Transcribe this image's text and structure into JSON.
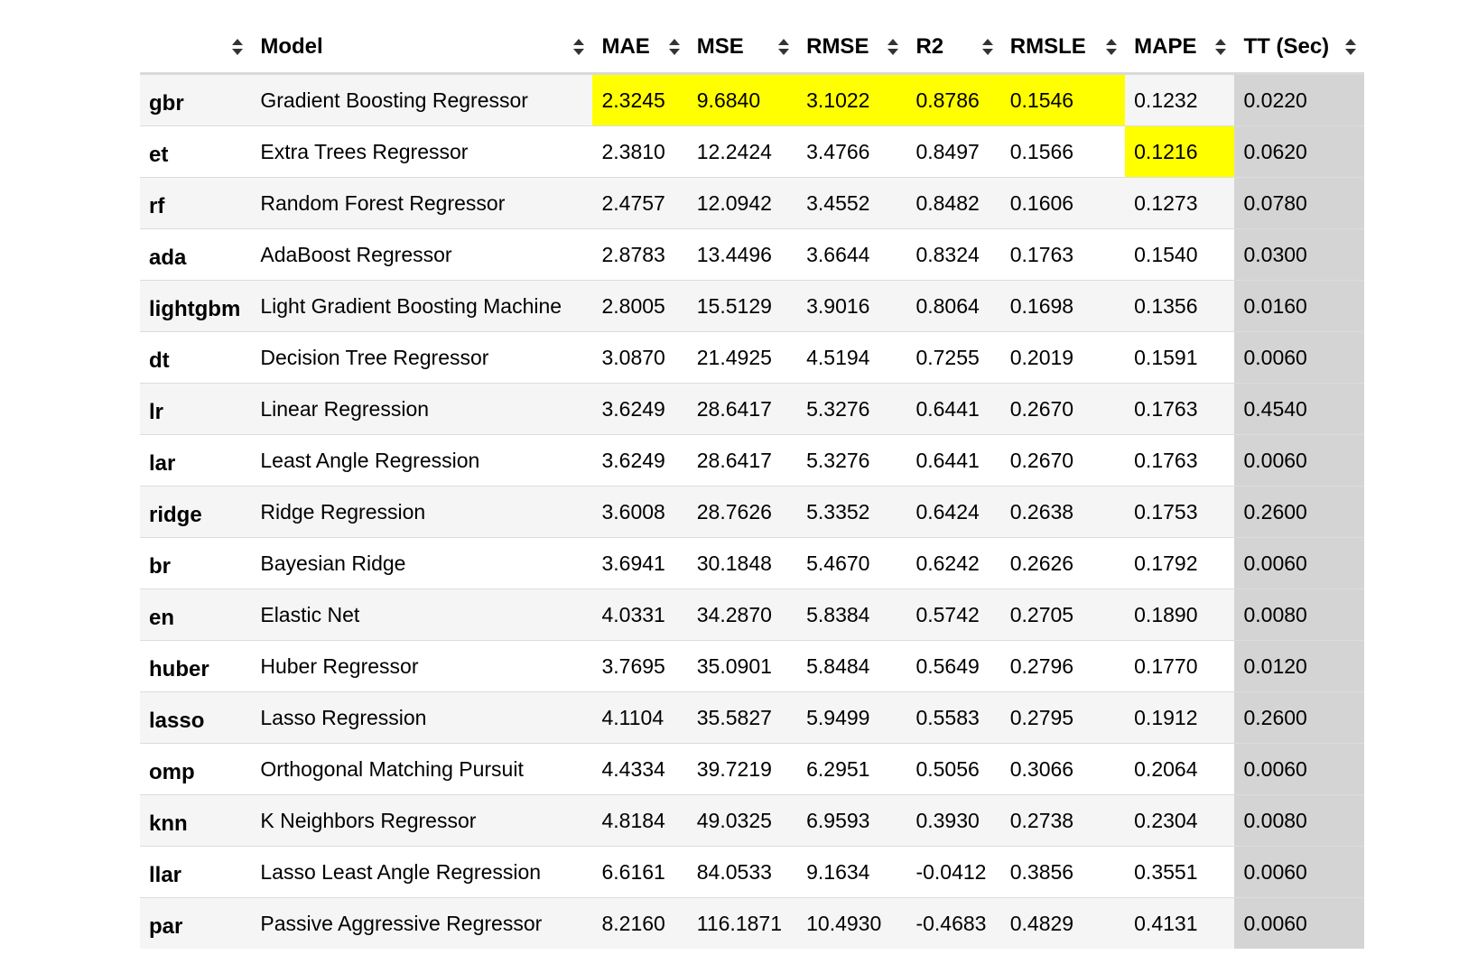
{
  "table": {
    "columns": [
      {
        "key": "id",
        "label": ""
      },
      {
        "key": "model",
        "label": "Model"
      },
      {
        "key": "mae",
        "label": "MAE"
      },
      {
        "key": "mse",
        "label": "MSE"
      },
      {
        "key": "rmse",
        "label": "RMSE"
      },
      {
        "key": "r2",
        "label": "R2"
      },
      {
        "key": "rmsle",
        "label": "RMSLE"
      },
      {
        "key": "mape",
        "label": "MAPE"
      },
      {
        "key": "tt",
        "label": "TT (Sec)"
      }
    ],
    "rows": [
      {
        "id": "gbr",
        "model": "Gradient Boosting Regressor",
        "mae": "2.3245",
        "mse": "9.6840",
        "rmse": "3.1022",
        "r2": "0.8786",
        "rmsle": "0.1546",
        "mape": "0.1232",
        "tt": "0.0220"
      },
      {
        "id": "et",
        "model": "Extra Trees Regressor",
        "mae": "2.3810",
        "mse": "12.2424",
        "rmse": "3.4766",
        "r2": "0.8497",
        "rmsle": "0.1566",
        "mape": "0.1216",
        "tt": "0.0620"
      },
      {
        "id": "rf",
        "model": "Random Forest Regressor",
        "mae": "2.4757",
        "mse": "12.0942",
        "rmse": "3.4552",
        "r2": "0.8482",
        "rmsle": "0.1606",
        "mape": "0.1273",
        "tt": "0.0780"
      },
      {
        "id": "ada",
        "model": "AdaBoost Regressor",
        "mae": "2.8783",
        "mse": "13.4496",
        "rmse": "3.6644",
        "r2": "0.8324",
        "rmsle": "0.1763",
        "mape": "0.1540",
        "tt": "0.0300"
      },
      {
        "id": "lightgbm",
        "model": "Light Gradient Boosting Machine",
        "mae": "2.8005",
        "mse": "15.5129",
        "rmse": "3.9016",
        "r2": "0.8064",
        "rmsle": "0.1698",
        "mape": "0.1356",
        "tt": "0.0160"
      },
      {
        "id": "dt",
        "model": "Decision Tree Regressor",
        "mae": "3.0870",
        "mse": "21.4925",
        "rmse": "4.5194",
        "r2": "0.7255",
        "rmsle": "0.2019",
        "mape": "0.1591",
        "tt": "0.0060"
      },
      {
        "id": "lr",
        "model": "Linear Regression",
        "mae": "3.6249",
        "mse": "28.6417",
        "rmse": "5.3276",
        "r2": "0.6441",
        "rmsle": "0.2670",
        "mape": "0.1763",
        "tt": "0.4540"
      },
      {
        "id": "lar",
        "model": "Least Angle Regression",
        "mae": "3.6249",
        "mse": "28.6417",
        "rmse": "5.3276",
        "r2": "0.6441",
        "rmsle": "0.2670",
        "mape": "0.1763",
        "tt": "0.0060"
      },
      {
        "id": "ridge",
        "model": "Ridge Regression",
        "mae": "3.6008",
        "mse": "28.7626",
        "rmse": "5.3352",
        "r2": "0.6424",
        "rmsle": "0.2638",
        "mape": "0.1753",
        "tt": "0.2600"
      },
      {
        "id": "br",
        "model": "Bayesian Ridge",
        "mae": "3.6941",
        "mse": "30.1848",
        "rmse": "5.4670",
        "r2": "0.6242",
        "rmsle": "0.2626",
        "mape": "0.1792",
        "tt": "0.0060"
      },
      {
        "id": "en",
        "model": "Elastic Net",
        "mae": "4.0331",
        "mse": "34.2870",
        "rmse": "5.8384",
        "r2": "0.5742",
        "rmsle": "0.2705",
        "mape": "0.1890",
        "tt": "0.0080"
      },
      {
        "id": "huber",
        "model": "Huber Regressor",
        "mae": "3.7695",
        "mse": "35.0901",
        "rmse": "5.8484",
        "r2": "0.5649",
        "rmsle": "0.2796",
        "mape": "0.1770",
        "tt": "0.0120"
      },
      {
        "id": "lasso",
        "model": "Lasso Regression",
        "mae": "4.1104",
        "mse": "35.5827",
        "rmse": "5.9499",
        "r2": "0.5583",
        "rmsle": "0.2795",
        "mape": "0.1912",
        "tt": "0.2600"
      },
      {
        "id": "omp",
        "model": "Orthogonal Matching Pursuit",
        "mae": "4.4334",
        "mse": "39.7219",
        "rmse": "6.2951",
        "r2": "0.5056",
        "rmsle": "0.3066",
        "mape": "0.2064",
        "tt": "0.0060"
      },
      {
        "id": "knn",
        "model": "K Neighbors Regressor",
        "mae": "4.8184",
        "mse": "49.0325",
        "rmse": "6.9593",
        "r2": "0.3930",
        "rmsle": "0.2738",
        "mape": "0.2304",
        "tt": "0.0080"
      },
      {
        "id": "llar",
        "model": "Lasso Least Angle Regression",
        "mae": "6.6161",
        "mse": "84.0533",
        "rmse": "9.1634",
        "r2": "-0.0412",
        "rmsle": "0.3856",
        "mape": "0.3551",
        "tt": "0.0060"
      },
      {
        "id": "par",
        "model": "Passive Aggressive Regressor",
        "mae": "8.2160",
        "mse": "116.1871",
        "rmse": "10.4930",
        "r2": "-0.4683",
        "rmsle": "0.4829",
        "mape": "0.4131",
        "tt": "0.0060"
      }
    ],
    "highlighted_cells": [
      {
        "row": 0,
        "col": "mae"
      },
      {
        "row": 0,
        "col": "mse"
      },
      {
        "row": 0,
        "col": "rmse"
      },
      {
        "row": 0,
        "col": "r2"
      },
      {
        "row": 0,
        "col": "rmsle"
      },
      {
        "row": 1,
        "col": "mape"
      }
    ],
    "shaded_column": "tt",
    "sort_icon": "sort-updown-icon"
  },
  "colors": {
    "highlight": "#ffff00",
    "shaded_column": "#d4d4d4",
    "row_alt": "#f5f5f5",
    "row_white": "#ffffff"
  }
}
